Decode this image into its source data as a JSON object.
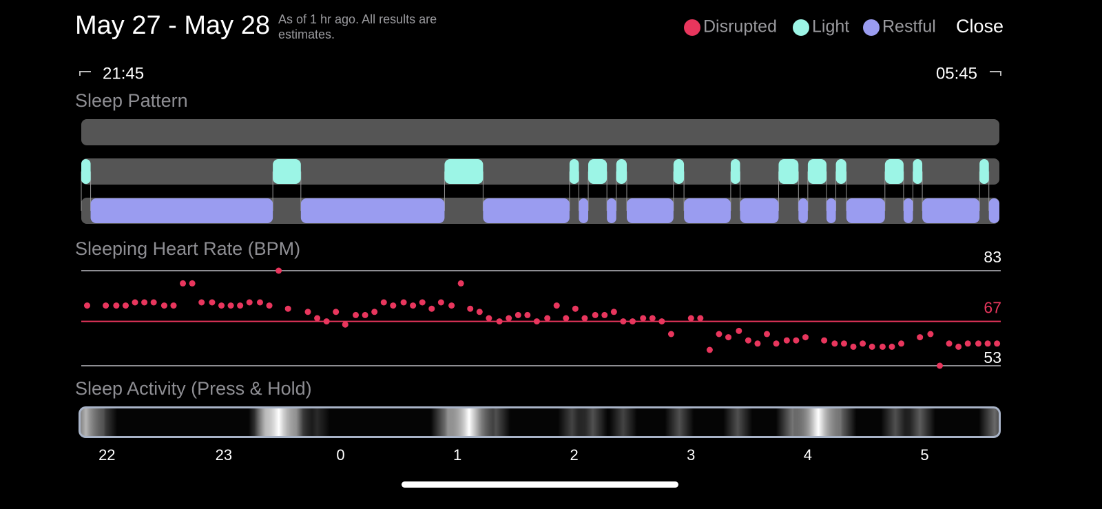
{
  "header": {
    "title": "May 27 - May 28",
    "subtitle": "As of 1 hr ago. All results are estimates.",
    "close": "Close"
  },
  "range": {
    "start": "21:45",
    "end": "05:45"
  },
  "chart_data": [
    {
      "type": "timeline",
      "title": "Sleep Pattern",
      "xlim": [
        -2.22,
        5.64
      ],
      "series": [
        {
          "name": "Disrupted",
          "color": "#e8365d",
          "segments": []
        },
        {
          "name": "Light",
          "color": "#9cf5e6",
          "segments": [
            [
              -2.22,
              -2.14
            ],
            [
              -0.58,
              -0.34
            ],
            [
              0.89,
              1.22
            ],
            [
              1.96,
              2.04
            ],
            [
              2.12,
              2.28
            ],
            [
              2.36,
              2.45
            ],
            [
              2.85,
              2.94
            ],
            [
              3.34,
              3.42
            ],
            [
              3.75,
              3.92
            ],
            [
              4.0,
              4.16
            ],
            [
              4.24,
              4.33
            ],
            [
              4.66,
              4.82
            ],
            [
              4.9,
              4.98
            ],
            [
              5.47,
              5.55
            ]
          ]
        },
        {
          "name": "Restful",
          "color": "#9a9cf0",
          "segments": [
            [
              -2.14,
              -0.58
            ],
            [
              -0.34,
              0.89
            ],
            [
              1.22,
              1.96
            ],
            [
              2.04,
              2.12
            ],
            [
              2.28,
              2.36
            ],
            [
              2.45,
              2.85
            ],
            [
              2.94,
              3.34
            ],
            [
              3.42,
              3.75
            ],
            [
              3.92,
              4.0
            ],
            [
              4.16,
              4.24
            ],
            [
              4.33,
              4.66
            ],
            [
              4.82,
              4.9
            ],
            [
              4.98,
              5.47
            ],
            [
              5.55,
              5.64
            ]
          ]
        }
      ]
    },
    {
      "type": "scatter",
      "title": "Sleeping Heart Rate (BPM)",
      "color": "#e8365d",
      "xlim": [
        -2.22,
        5.64
      ],
      "ylim": [
        53,
        83
      ],
      "yticks": [
        53,
        83
      ],
      "average": 67,
      "x": [
        -2.17,
        -2.01,
        -1.92,
        -1.84,
        -1.76,
        -1.68,
        -1.6,
        -1.51,
        -1.43,
        -1.35,
        -1.27,
        -1.19,
        -1.1,
        -1.02,
        -0.94,
        -0.86,
        -0.78,
        -0.69,
        -0.61,
        -0.53,
        -0.45,
        -0.28,
        -0.2,
        -0.12,
        -0.04,
        0.04,
        0.13,
        0.21,
        0.29,
        0.37,
        0.45,
        0.54,
        0.62,
        0.7,
        0.78,
        0.86,
        0.95,
        1.03,
        1.11,
        1.19,
        1.27,
        1.36,
        1.44,
        1.52,
        1.6,
        1.68,
        1.77,
        1.85,
        1.93,
        2.01,
        2.09,
        2.18,
        2.26,
        2.34,
        2.42,
        2.5,
        2.59,
        2.67,
        2.75,
        2.83,
        3.0,
        3.08,
        3.16,
        3.24,
        3.32,
        3.41,
        3.49,
        3.57,
        3.65,
        3.73,
        3.82,
        3.9,
        3.98,
        4.14,
        4.23,
        4.31,
        4.39,
        4.47,
        4.55,
        4.64,
        4.72,
        4.8,
        4.96,
        5.05,
        5.13,
        5.21,
        5.29,
        5.37,
        5.46,
        5.54,
        5.62
      ],
      "values": [
        72,
        72,
        72,
        72,
        73,
        73,
        73,
        72,
        72,
        79,
        79,
        73,
        73,
        72,
        72,
        72,
        73,
        73,
        72,
        83,
        71,
        70,
        68,
        67,
        70,
        66,
        69,
        69,
        70,
        73,
        72,
        73,
        72,
        73,
        71,
        73,
        72,
        79,
        71,
        70,
        68,
        67,
        68,
        69,
        69,
        67,
        68,
        72,
        68,
        71,
        68,
        69,
        69,
        70,
        67,
        67,
        68,
        68,
        67,
        63,
        68,
        68,
        58,
        63,
        62,
        64,
        61,
        60,
        63,
        60,
        61,
        61,
        62,
        61,
        60,
        60,
        59,
        60,
        59,
        59,
        59,
        60,
        62,
        63,
        53,
        60,
        59,
        60,
        60,
        60,
        60
      ]
    },
    {
      "type": "heatmap",
      "title": "Sleep Activity (Press & Hold)",
      "xlim": [
        -2.22,
        5.64
      ],
      "xticks": [
        {
          "value": -2,
          "label": "22"
        },
        {
          "value": -1,
          "label": "23"
        },
        0,
        1,
        2,
        3,
        4,
        5
      ],
      "x": [
        -2.18,
        -2.03,
        -0.64,
        -0.53,
        -0.38,
        -0.2,
        0.92,
        1.1,
        1.33,
        1.98,
        2.16,
        2.42,
        2.9,
        3.4,
        3.87,
        4.09,
        4.28,
        4.75,
        4.96,
        5.6
      ],
      "values": [
        0.7,
        0.25,
        0.5,
        1.0,
        0.4,
        0.15,
        0.5,
        1.0,
        0.3,
        0.25,
        0.3,
        0.25,
        0.3,
        0.3,
        0.45,
        1.0,
        0.4,
        0.3,
        0.35,
        0.4
      ]
    }
  ]
}
